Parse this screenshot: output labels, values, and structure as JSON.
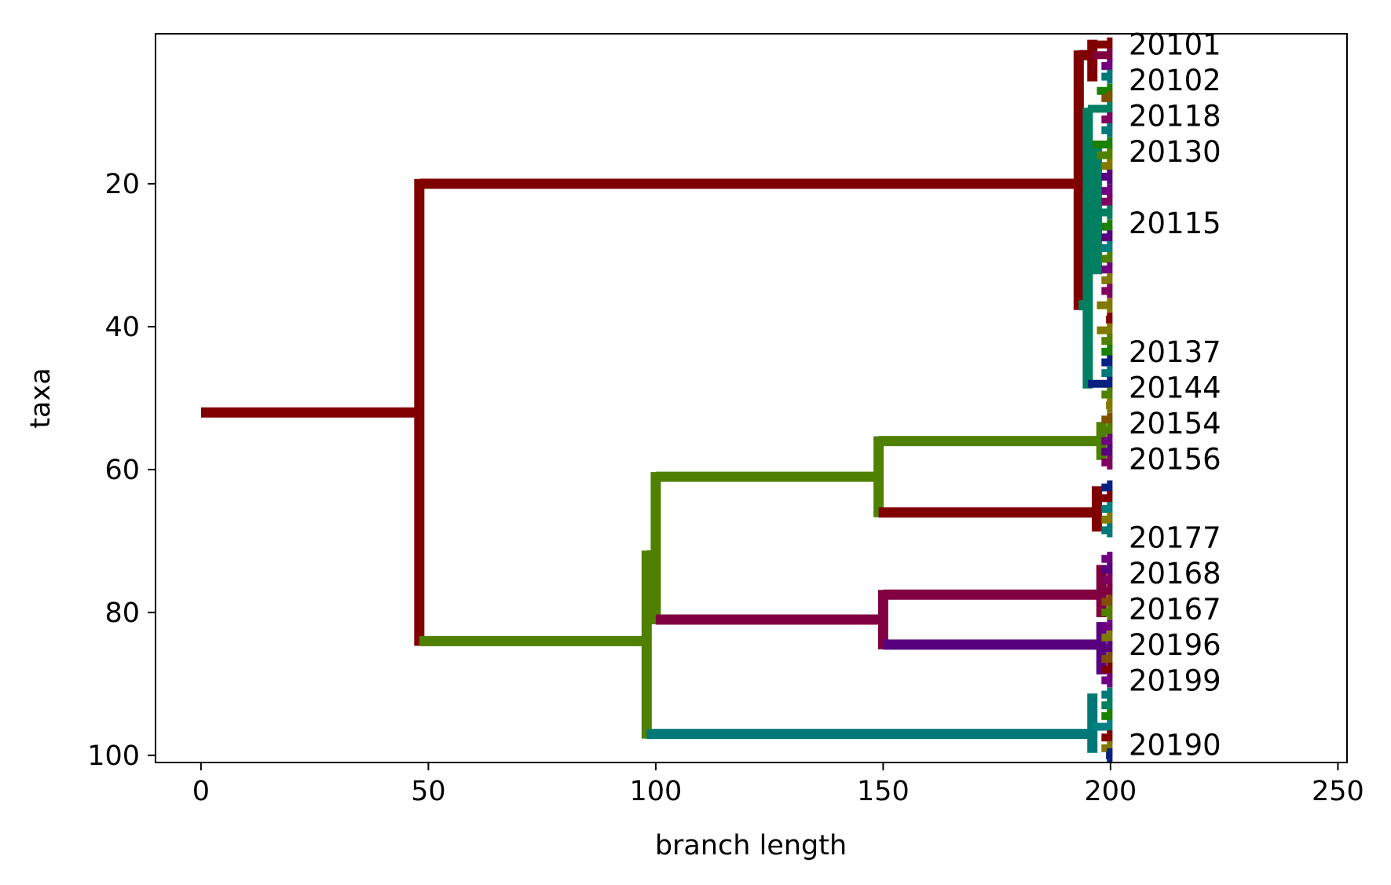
{
  "chart_data": {
    "type": "tree",
    "xlabel": "branch length",
    "ylabel": "taxa",
    "xlim": [
      -10,
      252
    ],
    "ylim": [
      101,
      -1
    ],
    "xticks": [
      0,
      50,
      100,
      150,
      200,
      250
    ],
    "yticks": [
      20,
      40,
      60,
      80,
      100
    ],
    "grid": false,
    "leaf_labels": [
      {
        "text": "20101",
        "y": 0.5
      },
      {
        "text": "20102",
        "y": 5.5
      },
      {
        "text": "20118",
        "y": 10.5
      },
      {
        "text": "20130",
        "y": 15.5
      },
      {
        "text": "20115",
        "y": 25.5
      },
      {
        "text": "20137",
        "y": 43.5
      },
      {
        "text": "20144",
        "y": 48.5
      },
      {
        "text": "20154",
        "y": 53.5
      },
      {
        "text": "20156",
        "y": 58.5
      },
      {
        "text": "20177",
        "y": 69.5
      },
      {
        "text": "20168",
        "y": 74.5
      },
      {
        "text": "20167",
        "y": 79.5
      },
      {
        "text": "20196",
        "y": 84.5
      },
      {
        "text": "20199",
        "y": 89.5
      },
      {
        "text": "20190",
        "y": 98.5
      }
    ],
    "colors": {
      "maroon": "#800000",
      "olive_green": "#4f8000",
      "crimson": "#800040",
      "purple": "#570080",
      "teal": "#007878",
      "sea_green": "#008060",
      "navy": "#082080",
      "olive": "#807a00",
      "violet": "#700080",
      "magenta": "#800060",
      "green": "#1a8000",
      "brown": "#805000",
      "cyan": "#008080"
    },
    "branches": [
      {
        "name": "root",
        "color": "maroon",
        "x0": 0,
        "x1": 48,
        "y": 52,
        "children_y": [
          20,
          84
        ]
      },
      {
        "name": "upper-clade",
        "color": "maroon",
        "x0": 48,
        "x1": 193,
        "y": 20,
        "children_y": [
          2,
          37
        ]
      },
      {
        "name": "upper-sub-a",
        "color": "maroon",
        "x0": 193,
        "x1": 196,
        "y": 2,
        "children_y": [
          0.5,
          5
        ]
      },
      {
        "name": "upper-sub-b",
        "color": "sea_green",
        "x0": 193,
        "x1": 195,
        "y": 37,
        "children_y": [
          10,
          48
        ]
      },
      {
        "name": "upper-sub-c",
        "color": "sea_green",
        "x0": 195,
        "x1": 197,
        "y": 20,
        "children_y": [
          15,
          32
        ]
      },
      {
        "name": "lower-clade",
        "color": "olive_green",
        "x0": 48,
        "x1": 98,
        "y": 84,
        "children_y": [
          72,
          97
        ]
      },
      {
        "name": "lower-sub-a",
        "color": "olive_green",
        "x0": 98,
        "x1": 100,
        "y": 72,
        "children_y": [
          61,
          81
        ]
      },
      {
        "name": "green-branch",
        "color": "olive_green",
        "x0": 100,
        "x1": 149,
        "y": 61,
        "children_y": [
          56,
          66
        ]
      },
      {
        "name": "green-leaf-upper",
        "color": "olive_green",
        "x0": 149,
        "x1": 198,
        "y": 56,
        "children_y": [
          54,
          58
        ]
      },
      {
        "name": "maroon-leaf-lower",
        "color": "maroon",
        "x0": 149,
        "x1": 197,
        "y": 66,
        "children_y": [
          63,
          68
        ]
      },
      {
        "name": "crimson-branch",
        "color": "crimson",
        "x0": 100,
        "x1": 150,
        "y": 81,
        "children_y": [
          77.5,
          84.5
        ]
      },
      {
        "name": "crimson-leaf",
        "color": "crimson",
        "x0": 150,
        "x1": 198,
        "y": 77.5,
        "children_y": [
          74,
          80
        ]
      },
      {
        "name": "purple-leaf",
        "color": "purple",
        "x0": 150,
        "x1": 198,
        "y": 84.5,
        "children_y": [
          82,
          88
        ]
      },
      {
        "name": "teal-leaf",
        "color": "teal",
        "x0": 98,
        "x1": 196,
        "y": 97,
        "children_y": [
          92,
          99
        ]
      }
    ],
    "terminal_ticks": [
      {
        "y": 0.5,
        "color": "maroon",
        "x0": 197,
        "x1": 200
      },
      {
        "y": 2,
        "color": "crimson",
        "x0": 196,
        "x1": 200
      },
      {
        "y": 3.5,
        "color": "violet",
        "x0": 198,
        "x1": 200
      },
      {
        "y": 5,
        "color": "teal",
        "x0": 198,
        "x1": 200
      },
      {
        "y": 7,
        "color": "green",
        "x0": 197,
        "x1": 200
      },
      {
        "y": 8,
        "color": "brown",
        "x0": 198,
        "x1": 200
      },
      {
        "y": 9.5,
        "color": "sea_green",
        "x0": 195,
        "x1": 200
      },
      {
        "y": 11,
        "color": "magenta",
        "x0": 198,
        "x1": 200
      },
      {
        "y": 12.5,
        "color": "teal",
        "x0": 198,
        "x1": 200
      },
      {
        "y": 14.5,
        "color": "green",
        "x0": 196,
        "x1": 200
      },
      {
        "y": 16,
        "color": "olive_green",
        "x0": 197,
        "x1": 200
      },
      {
        "y": 17.5,
        "color": "olive",
        "x0": 198,
        "x1": 200
      },
      {
        "y": 19,
        "color": "purple",
        "x0": 198,
        "x1": 200
      },
      {
        "y": 21,
        "color": "violet",
        "x0": 198,
        "x1": 200
      },
      {
        "y": 22.5,
        "color": "magenta",
        "x0": 198,
        "x1": 200
      },
      {
        "y": 24,
        "color": "sea_green",
        "x0": 197,
        "x1": 200
      },
      {
        "y": 26,
        "color": "green",
        "x0": 198,
        "x1": 200
      },
      {
        "y": 27.5,
        "color": "purple",
        "x0": 198,
        "x1": 200
      },
      {
        "y": 29,
        "color": "cyan",
        "x0": 198,
        "x1": 200
      },
      {
        "y": 30.5,
        "color": "olive_green",
        "x0": 198,
        "x1": 200
      },
      {
        "y": 32,
        "color": "violet",
        "x0": 198,
        "x1": 200
      },
      {
        "y": 33.5,
        "color": "olive",
        "x0": 198,
        "x1": 200
      },
      {
        "y": 35,
        "color": "magenta",
        "x0": 198,
        "x1": 200
      },
      {
        "y": 37,
        "color": "olive",
        "x0": 197,
        "x1": 200
      },
      {
        "y": 39,
        "color": "maroon",
        "x0": 199,
        "x1": 200
      },
      {
        "y": 40.5,
        "color": "olive",
        "x0": 197,
        "x1": 200
      },
      {
        "y": 42,
        "color": "olive_green",
        "x0": 198,
        "x1": 200
      },
      {
        "y": 43.5,
        "color": "green",
        "x0": 198,
        "x1": 200
      },
      {
        "y": 45,
        "color": "navy",
        "x0": 198,
        "x1": 200
      },
      {
        "y": 46.5,
        "color": "teal",
        "x0": 198,
        "x1": 200
      },
      {
        "y": 48,
        "color": "navy",
        "x0": 195,
        "x1": 200
      },
      {
        "y": 49.5,
        "color": "olive_green",
        "x0": 198,
        "x1": 200
      },
      {
        "y": 51,
        "color": "olive",
        "x0": 199,
        "x1": 200
      },
      {
        "y": 53,
        "color": "brown",
        "x0": 198,
        "x1": 200
      },
      {
        "y": 54.5,
        "color": "olive_green",
        "x0": 198,
        "x1": 200
      },
      {
        "y": 56,
        "color": "violet",
        "x0": 198,
        "x1": 200
      },
      {
        "y": 57.5,
        "color": "purple",
        "x0": 198,
        "x1": 200
      },
      {
        "y": 59,
        "color": "magenta",
        "x0": 198,
        "x1": 200
      },
      {
        "y": 62.5,
        "color": "navy",
        "x0": 198,
        "x1": 200
      },
      {
        "y": 64,
        "color": "maroon",
        "x0": 197,
        "x1": 200
      },
      {
        "y": 65.5,
        "color": "cyan",
        "x0": 198,
        "x1": 200
      },
      {
        "y": 67,
        "color": "olive",
        "x0": 198,
        "x1": 200
      },
      {
        "y": 68.5,
        "color": "teal",
        "x0": 198,
        "x1": 200
      },
      {
        "y": 72.5,
        "color": "violet",
        "x0": 198,
        "x1": 200
      },
      {
        "y": 74,
        "color": "purple",
        "x0": 198,
        "x1": 200
      },
      {
        "y": 75.5,
        "color": "magenta",
        "x0": 198,
        "x1": 200
      },
      {
        "y": 77,
        "color": "crimson",
        "x0": 197,
        "x1": 200
      },
      {
        "y": 78.5,
        "color": "brown",
        "x0": 198,
        "x1": 200
      },
      {
        "y": 80,
        "color": "olive_green",
        "x0": 198,
        "x1": 200
      },
      {
        "y": 82,
        "color": "violet",
        "x0": 198,
        "x1": 200
      },
      {
        "y": 83.5,
        "color": "olive",
        "x0": 198,
        "x1": 200
      },
      {
        "y": 85,
        "color": "purple",
        "x0": 197,
        "x1": 200
      },
      {
        "y": 86.5,
        "color": "brown",
        "x0": 198,
        "x1": 200
      },
      {
        "y": 88,
        "color": "maroon",
        "x0": 198,
        "x1": 200
      },
      {
        "y": 89.5,
        "color": "violet",
        "x0": 198,
        "x1": 200
      },
      {
        "y": 91.5,
        "color": "teal",
        "x0": 198,
        "x1": 200
      },
      {
        "y": 93,
        "color": "sea_green",
        "x0": 198,
        "x1": 200
      },
      {
        "y": 94.5,
        "color": "green",
        "x0": 198,
        "x1": 200
      },
      {
        "y": 96,
        "color": "cyan",
        "x0": 196,
        "x1": 200
      },
      {
        "y": 97.5,
        "color": "maroon",
        "x0": 198,
        "x1": 200
      },
      {
        "y": 99,
        "color": "olive",
        "x0": 198,
        "x1": 200
      },
      {
        "y": 100,
        "color": "navy",
        "x0": 199,
        "x1": 200
      }
    ]
  }
}
